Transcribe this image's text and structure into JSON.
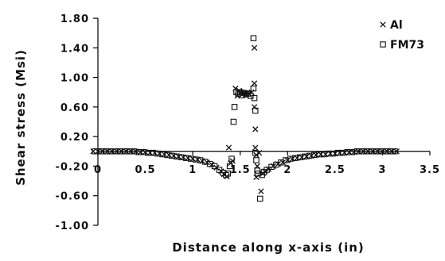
{
  "chart_data": {
    "type": "scatter",
    "title": "",
    "xlabel": "Distance along x-axis (in)",
    "ylabel": "Shear stress (Msi)",
    "xlim": [
      0,
      3.5
    ],
    "ylim": [
      -1.0,
      1.8
    ],
    "x_ticks": [
      "0",
      "0.5",
      "1",
      "1.5",
      "2",
      "2.5",
      "3",
      "3.5"
    ],
    "y_ticks": [
      "1.80",
      "1.40",
      "1.00",
      "0.60",
      "0.20",
      "-0.20",
      "-0.60",
      "-1.00"
    ],
    "x_tick_values": [
      0,
      0.5,
      1,
      1.5,
      2,
      2.5,
      3,
      3.5
    ],
    "y_tick_values": [
      1.8,
      1.4,
      1.0,
      0.6,
      0.2,
      -0.2,
      -0.6,
      -1.0
    ],
    "grid": false,
    "legend_position": "top-right",
    "series": [
      {
        "name": "Al",
        "marker": "x",
        "points": [
          [
            -0.05,
            0.0
          ],
          [
            0.0,
            0.0
          ],
          [
            0.05,
            0.0
          ],
          [
            0.1,
            0.0
          ],
          [
            0.15,
            0.0
          ],
          [
            0.2,
            0.0
          ],
          [
            0.25,
            0.0
          ],
          [
            0.3,
            0.0
          ],
          [
            0.35,
            0.0
          ],
          [
            0.4,
            0.0
          ],
          [
            0.45,
            -0.01
          ],
          [
            0.5,
            -0.01
          ],
          [
            0.55,
            -0.02
          ],
          [
            0.6,
            -0.02
          ],
          [
            0.65,
            -0.03
          ],
          [
            0.7,
            -0.04
          ],
          [
            0.75,
            -0.05
          ],
          [
            0.8,
            -0.06
          ],
          [
            0.85,
            -0.07
          ],
          [
            0.9,
            -0.08
          ],
          [
            0.95,
            -0.09
          ],
          [
            1.0,
            -0.1
          ],
          [
            1.05,
            -0.11
          ],
          [
            1.1,
            -0.13
          ],
          [
            1.15,
            -0.15
          ],
          [
            1.2,
            -0.18
          ],
          [
            1.25,
            -0.22
          ],
          [
            1.3,
            -0.27
          ],
          [
            1.33,
            -0.31
          ],
          [
            1.36,
            -0.34
          ],
          [
            1.38,
            0.05
          ],
          [
            1.4,
            -0.16
          ],
          [
            1.42,
            -0.13
          ],
          [
            1.45,
            0.85
          ],
          [
            1.47,
            0.75
          ],
          [
            1.49,
            0.82
          ],
          [
            1.51,
            0.8
          ],
          [
            1.53,
            0.78
          ],
          [
            1.55,
            0.79
          ],
          [
            1.57,
            0.78
          ],
          [
            1.59,
            0.78
          ],
          [
            1.62,
            0.8
          ],
          [
            1.65,
            1.4
          ],
          [
            1.65,
            0.92
          ],
          [
            1.65,
            0.6
          ],
          [
            1.66,
            0.3
          ],
          [
            1.66,
            0.05
          ],
          [
            1.67,
            -0.05
          ],
          [
            1.67,
            -0.35
          ],
          [
            1.68,
            -0.2
          ],
          [
            1.7,
            -0.02
          ],
          [
            1.72,
            -0.54
          ],
          [
            1.74,
            -0.3
          ],
          [
            1.76,
            -0.27
          ],
          [
            1.8,
            -0.24
          ],
          [
            1.85,
            -0.2
          ],
          [
            1.9,
            -0.17
          ],
          [
            1.95,
            -0.15
          ],
          [
            2.0,
            -0.12
          ],
          [
            2.05,
            -0.1
          ],
          [
            2.1,
            -0.09
          ],
          [
            2.15,
            -0.08
          ],
          [
            2.2,
            -0.07
          ],
          [
            2.25,
            -0.06
          ],
          [
            2.3,
            -0.05
          ],
          [
            2.35,
            -0.04
          ],
          [
            2.4,
            -0.04
          ],
          [
            2.45,
            -0.03
          ],
          [
            2.5,
            -0.03
          ],
          [
            2.55,
            -0.02
          ],
          [
            2.6,
            -0.02
          ],
          [
            2.65,
            -0.01
          ],
          [
            2.7,
            -0.01
          ],
          [
            2.75,
            0.0
          ],
          [
            2.8,
            0.0
          ],
          [
            2.85,
            0.0
          ],
          [
            2.9,
            0.0
          ],
          [
            2.95,
            0.0
          ],
          [
            3.0,
            0.0
          ],
          [
            3.05,
            0.0
          ],
          [
            3.1,
            0.0
          ],
          [
            3.15,
            0.0
          ]
        ]
      },
      {
        "name": "FM73",
        "marker": "square",
        "points": [
          [
            -0.03,
            0.0
          ],
          [
            0.03,
            0.0
          ],
          [
            0.08,
            0.0
          ],
          [
            0.13,
            0.0
          ],
          [
            0.18,
            0.0
          ],
          [
            0.23,
            0.0
          ],
          [
            0.28,
            0.0
          ],
          [
            0.33,
            0.0
          ],
          [
            0.38,
            0.0
          ],
          [
            0.43,
            -0.01
          ],
          [
            0.48,
            -0.01
          ],
          [
            0.53,
            -0.02
          ],
          [
            0.58,
            -0.02
          ],
          [
            0.63,
            -0.03
          ],
          [
            0.68,
            -0.04
          ],
          [
            0.73,
            -0.05
          ],
          [
            0.78,
            -0.06
          ],
          [
            0.83,
            -0.07
          ],
          [
            0.88,
            -0.08
          ],
          [
            0.93,
            -0.09
          ],
          [
            0.98,
            -0.1
          ],
          [
            1.03,
            -0.11
          ],
          [
            1.08,
            -0.12
          ],
          [
            1.13,
            -0.14
          ],
          [
            1.18,
            -0.17
          ],
          [
            1.23,
            -0.2
          ],
          [
            1.28,
            -0.25
          ],
          [
            1.32,
            -0.29
          ],
          [
            1.35,
            -0.32
          ],
          [
            1.37,
            -0.3
          ],
          [
            1.39,
            -0.2
          ],
          [
            1.41,
            -0.1
          ],
          [
            1.43,
            0.4
          ],
          [
            1.44,
            0.6
          ],
          [
            1.46,
            0.8
          ],
          [
            1.48,
            0.78
          ],
          [
            1.5,
            0.8
          ],
          [
            1.52,
            0.76
          ],
          [
            1.54,
            0.79
          ],
          [
            1.56,
            0.77
          ],
          [
            1.58,
            0.78
          ],
          [
            1.61,
            0.75
          ],
          [
            1.64,
            1.53
          ],
          [
            1.64,
            0.85
          ],
          [
            1.65,
            0.72
          ],
          [
            1.66,
            0.55
          ],
          [
            1.66,
            -0.02
          ],
          [
            1.67,
            -0.12
          ],
          [
            1.68,
            -0.26
          ],
          [
            1.69,
            -0.3
          ],
          [
            1.71,
            -0.64
          ],
          [
            1.73,
            -0.32
          ],
          [
            1.75,
            -0.28
          ],
          [
            1.78,
            -0.25
          ],
          [
            1.83,
            -0.21
          ],
          [
            1.88,
            -0.18
          ],
          [
            1.93,
            -0.15
          ],
          [
            1.98,
            -0.12
          ],
          [
            2.03,
            -0.1
          ],
          [
            2.08,
            -0.09
          ],
          [
            2.13,
            -0.08
          ],
          [
            2.18,
            -0.07
          ],
          [
            2.23,
            -0.06
          ],
          [
            2.28,
            -0.05
          ],
          [
            2.33,
            -0.04
          ],
          [
            2.38,
            -0.04
          ],
          [
            2.43,
            -0.03
          ],
          [
            2.48,
            -0.03
          ],
          [
            2.53,
            -0.02
          ],
          [
            2.58,
            -0.02
          ],
          [
            2.63,
            -0.01
          ],
          [
            2.68,
            -0.01
          ],
          [
            2.73,
            0.0
          ],
          [
            2.78,
            0.0
          ],
          [
            2.83,
            0.0
          ],
          [
            2.88,
            0.0
          ],
          [
            2.93,
            0.0
          ],
          [
            2.98,
            0.0
          ],
          [
            3.03,
            0.0
          ],
          [
            3.08,
            0.0
          ],
          [
            3.13,
            0.0
          ]
        ]
      }
    ]
  }
}
